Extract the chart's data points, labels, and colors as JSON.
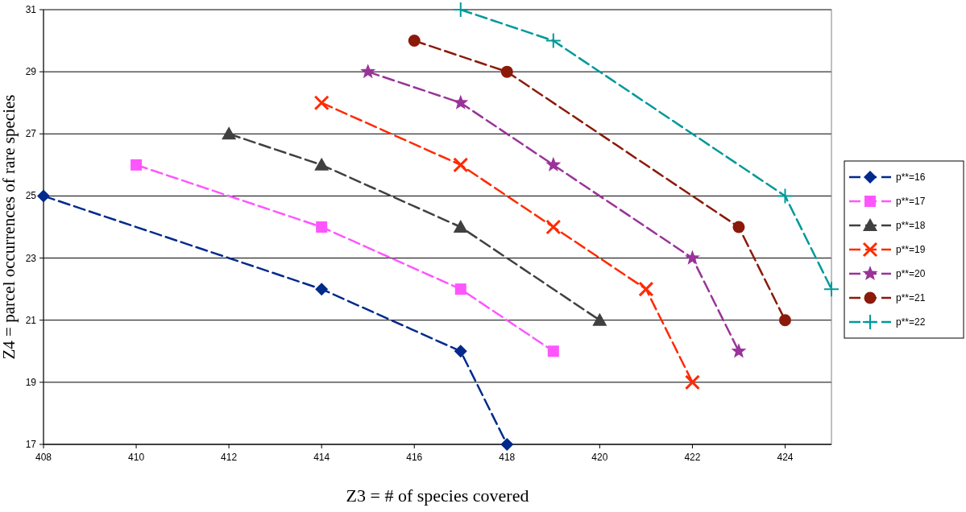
{
  "chart_data": {
    "type": "line",
    "xlabel": "Z3 = # of species covered",
    "ylabel": "Z4 = parcel occurrences of rare species",
    "xlim": [
      408,
      425
    ],
    "xticks": [
      408,
      410,
      412,
      414,
      416,
      418,
      420,
      422,
      424
    ],
    "ylim": [
      17,
      31
    ],
    "yticks": [
      17,
      19,
      21,
      23,
      25,
      27,
      29,
      31
    ],
    "grid": "y",
    "legend": "right",
    "line_style": "dashed",
    "series": [
      {
        "name": "p**=16",
        "color": "#002a8c",
        "marker": "diamond",
        "x": [
          408,
          414,
          417,
          418
        ],
        "values": [
          25,
          22,
          20,
          17
        ]
      },
      {
        "name": "p**=17",
        "color": "#ff55ff",
        "marker": "square",
        "x": [
          410,
          414,
          417,
          419
        ],
        "values": [
          26,
          24,
          22,
          20
        ]
      },
      {
        "name": "p**=18",
        "color": "#404040",
        "marker": "triangle",
        "x": [
          412,
          414,
          417,
          420
        ],
        "values": [
          27,
          26,
          24,
          21
        ]
      },
      {
        "name": "p**=19",
        "color": "#ff2a00",
        "marker": "cross",
        "x": [
          414,
          417,
          419,
          421,
          422
        ],
        "values": [
          28,
          26,
          24,
          22,
          19
        ]
      },
      {
        "name": "p**=20",
        "color": "#993399",
        "marker": "star",
        "x": [
          415,
          417,
          419,
          422,
          423
        ],
        "values": [
          29,
          28,
          26,
          23,
          20
        ]
      },
      {
        "name": "p**=21",
        "color": "#8b1a0a",
        "marker": "circle",
        "x": [
          416,
          418,
          423,
          424
        ],
        "values": [
          30,
          29,
          24,
          21
        ]
      },
      {
        "name": "p**=22",
        "color": "#009999",
        "marker": "plus",
        "x": [
          417,
          419,
          424,
          425
        ],
        "values": [
          31,
          30,
          25,
          22
        ]
      }
    ]
  }
}
